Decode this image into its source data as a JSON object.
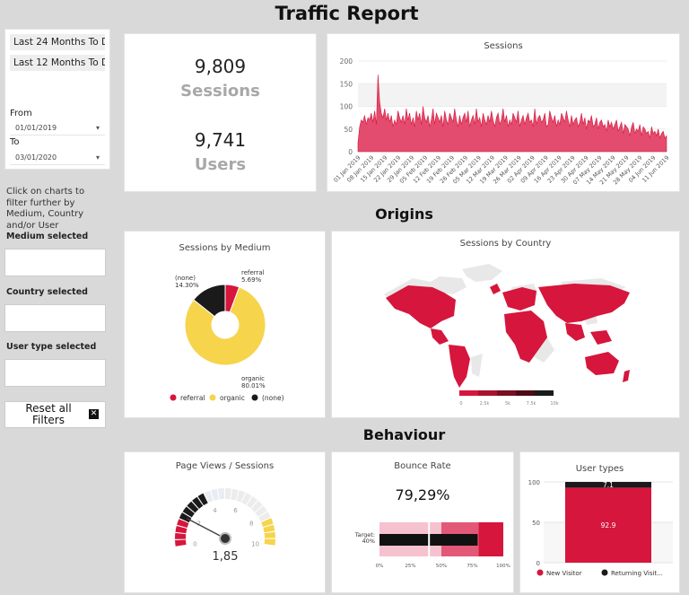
{
  "page_title": "Traffic Report",
  "sidebar": {
    "range_buttons": [
      "Last 24 Months To D...",
      "Last 12 Months To D..."
    ],
    "from_label": "From",
    "from_value": "01/01/2019",
    "to_label": "To",
    "to_value": "03/01/2020",
    "hint": "Click on charts to filter further by Medium, Country and/or User",
    "medium_label": "Medium selected",
    "country_label": "Country selected",
    "usertype_label": "User type selected",
    "reset_label": "Reset all Filters"
  },
  "kpis": {
    "sessions_value": "9,809",
    "sessions_label": "Sessions",
    "users_value": "9,741",
    "users_label": "Users"
  },
  "sections": {
    "origins": "Origins",
    "behaviour": "Behaviour"
  },
  "colors": {
    "accent": "#d6163c",
    "area": "#e34c6e",
    "yellow": "#f6d44c",
    "dark": "#1a1a1a"
  },
  "chart_data": [
    {
      "id": "sessions",
      "type": "area",
      "title": "Sessions",
      "ylim": [
        0,
        200
      ],
      "yticks": [
        0,
        50,
        100,
        150,
        200
      ],
      "xticks": [
        "01 Jan 2019",
        "08 Jan 2019",
        "15 Jan 2019",
        "22 Jan 2019",
        "29 Jan 2019",
        "05 Feb 2019",
        "12 Feb 2019",
        "19 Feb 2019",
        "26 Feb 2019",
        "05 Mar 2019",
        "12 Mar 2019",
        "19 Mar 2019",
        "26 Mar 2019",
        "02 Apr 2019",
        "09 Apr 2019",
        "16 Apr 2019",
        "23 Apr 2019",
        "30 Apr 2019",
        "07 May 2019",
        "14 May 2019",
        "21 May 2019",
        "28 May 2019",
        "04 Jun 2019",
        "11 Jun 2019"
      ],
      "values": [
        20,
        55,
        70,
        65,
        80,
        60,
        75,
        70,
        85,
        65,
        90,
        60,
        170,
        110,
        85,
        75,
        95,
        70,
        85,
        65,
        80,
        55,
        70,
        60,
        90,
        75,
        65,
        80,
        60,
        95,
        70,
        85,
        60,
        75,
        55,
        90,
        70,
        85,
        60,
        100,
        75,
        65,
        80,
        55,
        70,
        95,
        60,
        85,
        75,
        65,
        80,
        55,
        90,
        70,
        60,
        85,
        75,
        65,
        95,
        70,
        55,
        80,
        60,
        75,
        85,
        65,
        90,
        55,
        70,
        80,
        60,
        95,
        65,
        75,
        55,
        85,
        70,
        60,
        80,
        65,
        90,
        70,
        55,
        75,
        85,
        60,
        70,
        95,
        65,
        80,
        55,
        70,
        60,
        85,
        75,
        65,
        90,
        55,
        70,
        80,
        60,
        75,
        85,
        65,
        70,
        55,
        95,
        60,
        75,
        80,
        65,
        70,
        85,
        55,
        60,
        90,
        75,
        65,
        80,
        55,
        70,
        60,
        85,
        75,
        65,
        90,
        70,
        55,
        80,
        60,
        70,
        75,
        55,
        65,
        85,
        60,
        75,
        50,
        70,
        65,
        80,
        55,
        60,
        75,
        50,
        65,
        70,
        55,
        60,
        45,
        70,
        55,
        65,
        50,
        60,
        70,
        45,
        55,
        65,
        40,
        60,
        55,
        50,
        35,
        55,
        65,
        40,
        50,
        45,
        60,
        35,
        55,
        50,
        40,
        45,
        30,
        55,
        40,
        45,
        35,
        50,
        30,
        40,
        45,
        30,
        35
      ]
    },
    {
      "id": "medium",
      "type": "pie",
      "title": "Sessions by Medium",
      "slices": [
        {
          "name": "referral",
          "value": 5.69,
          "label": "5.69%",
          "color": "#d6163c"
        },
        {
          "name": "organic",
          "value": 80.01,
          "label": "80.01%",
          "color": "#f6d44c"
        },
        {
          "name": "(none)",
          "value": 14.3,
          "label": "14.30%",
          "color": "#1a1a1a"
        }
      ]
    },
    {
      "id": "country",
      "type": "map",
      "title": "Sessions by Country",
      "scale_ticks": [
        "0",
        "2.5k",
        "5k",
        "7.5k",
        "10k"
      ],
      "scale_colors": [
        "#d6163c",
        "#a8132f",
        "#7a0f23",
        "#4d0a16",
        "#1a1a1a"
      ]
    },
    {
      "id": "pageviews",
      "type": "gauge",
      "title": "Page Views / Sessions",
      "min": 0,
      "max": 10,
      "ticks": [
        0,
        2,
        4,
        6,
        8,
        10
      ],
      "value": 1.85,
      "value_label": "1,85"
    },
    {
      "id": "bounce",
      "type": "bullet",
      "title": "Bounce Rate",
      "value_label": "79,29%",
      "value": 79.29,
      "target": 40,
      "target_label": "Target: 40%",
      "ticks": [
        "0%",
        "25%",
        "50%",
        "75%",
        "100%"
      ]
    },
    {
      "id": "usertypes",
      "type": "bar",
      "title": "User types",
      "ylim": [
        0,
        100
      ],
      "yticks": [
        0,
        50,
        100
      ],
      "series": [
        {
          "name": "New Visitor",
          "value": 92.9,
          "label": "92.9",
          "color": "#d6163c"
        },
        {
          "name": "Returning Visit...",
          "value": 7.1,
          "label": "7.1",
          "color": "#1a1a1a"
        }
      ]
    }
  ]
}
